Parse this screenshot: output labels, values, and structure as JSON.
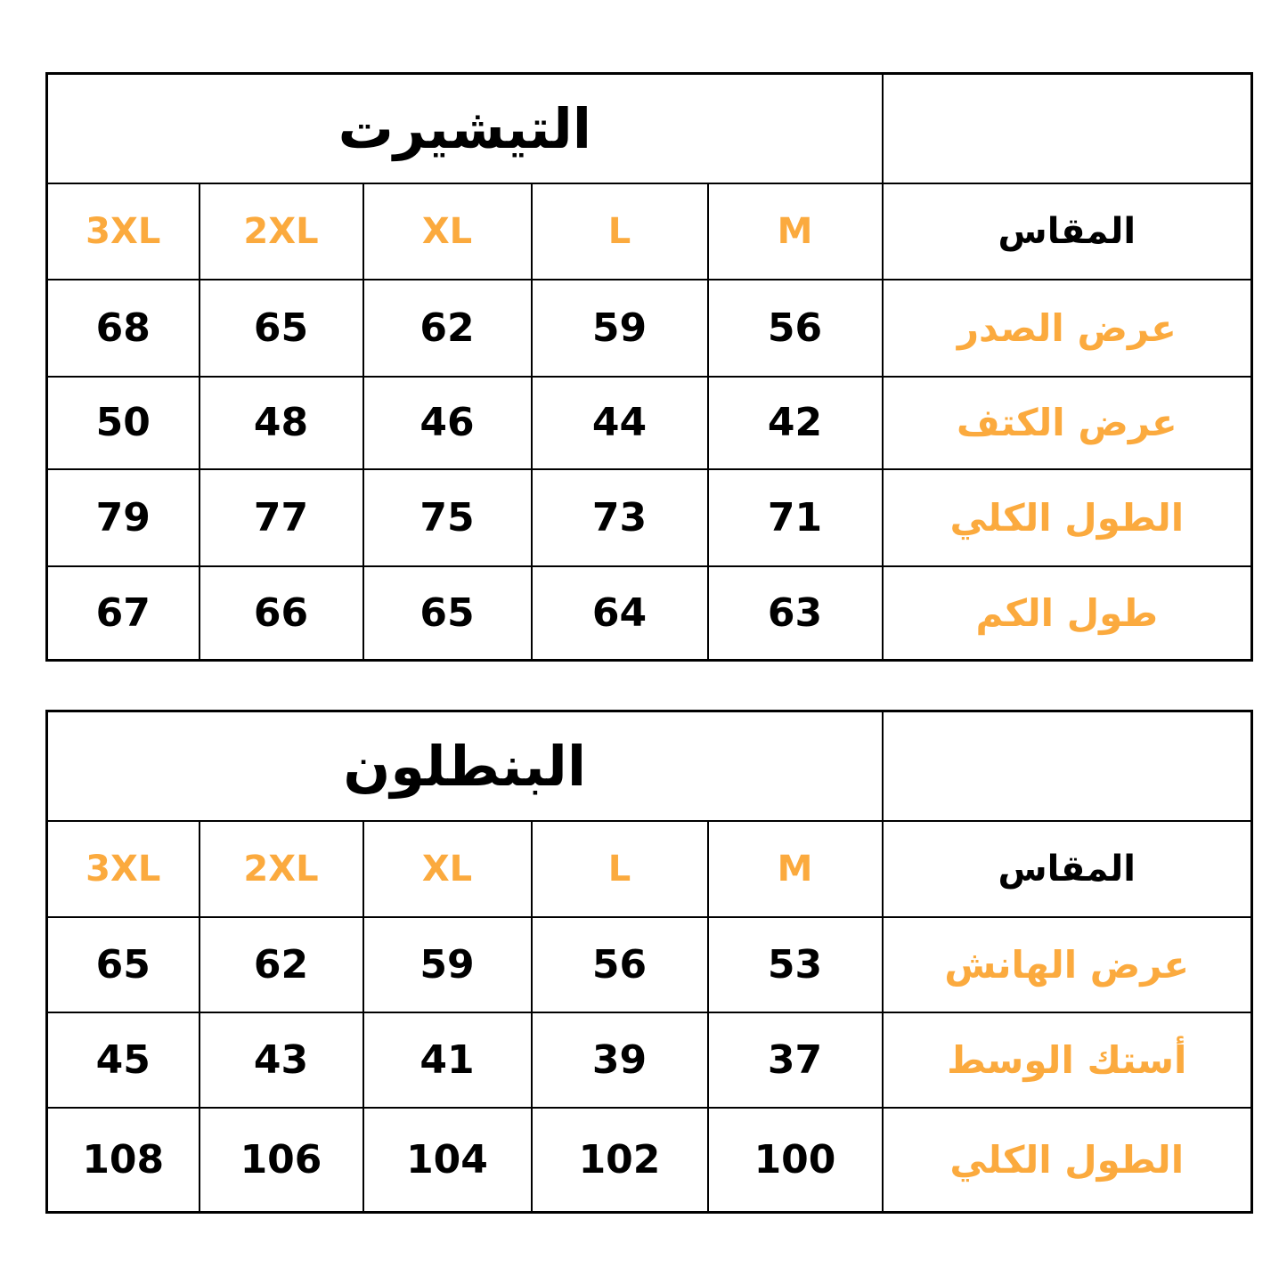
{
  "colors": {
    "accent": "#FBAA3E",
    "text": "#000000",
    "border": "#000000"
  },
  "tables": [
    {
      "title": "التيشيرت",
      "size_label": "المقاس",
      "sizes": [
        "M",
        "L",
        "XL",
        "2XL",
        "3XL"
      ],
      "rows": [
        {
          "label": "عرض الصدر",
          "values": [
            "56",
            "59",
            "62",
            "65",
            "68"
          ]
        },
        {
          "label": "عرض الكتف",
          "values": [
            "42",
            "44",
            "46",
            "48",
            "50"
          ]
        },
        {
          "label": "الطول الكلي",
          "values": [
            "71",
            "73",
            "75",
            "77",
            "79"
          ]
        },
        {
          "label": "طول الكم",
          "values": [
            "63",
            "64",
            "65",
            "66",
            "67"
          ]
        }
      ]
    },
    {
      "title": "البنطلون",
      "size_label": "المقاس",
      "sizes": [
        "M",
        "L",
        "XL",
        "2XL",
        "3XL"
      ],
      "rows": [
        {
          "label": "عرض الهانش",
          "values": [
            "53",
            "56",
            "59",
            "62",
            "65"
          ]
        },
        {
          "label": "أستك الوسط",
          "values": [
            "37",
            "39",
            "41",
            "43",
            "45"
          ]
        },
        {
          "label": "الطول الكلي",
          "values": [
            "100",
            "102",
            "104",
            "106",
            "108"
          ]
        }
      ]
    }
  ]
}
